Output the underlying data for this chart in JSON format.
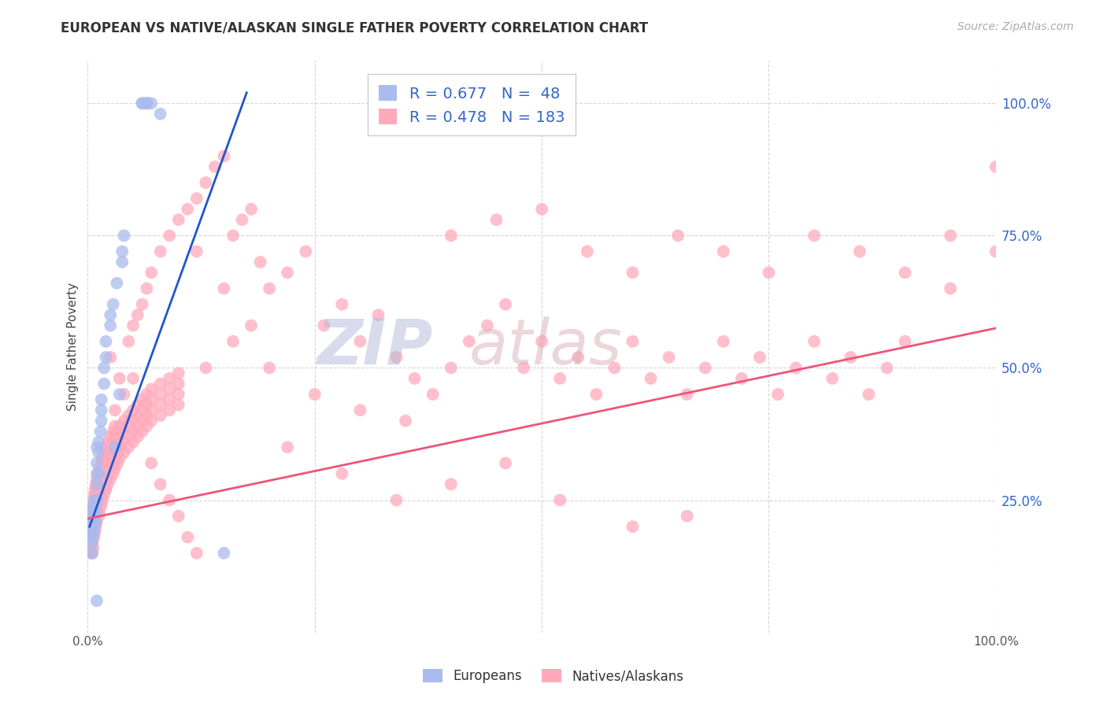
{
  "title": "EUROPEAN VS NATIVE/ALASKAN SINGLE FATHER POVERTY CORRELATION CHART",
  "source": "Source: ZipAtlas.com",
  "ylabel": "Single Father Poverty",
  "ytick_labels": [
    "25.0%",
    "50.0%",
    "75.0%",
    "100.0%"
  ],
  "ytick_positions": [
    0.25,
    0.5,
    0.75,
    1.0
  ],
  "europeans_color": "#aabbee",
  "natives_color": "#ffaabb",
  "trendline_blue": "#2255cc",
  "trendline_pink": "#ee5577",
  "xlim": [
    0.0,
    1.0
  ],
  "ylim": [
    0.0,
    1.08
  ],
  "background_color": "#ffffff",
  "grid_color": "#cccccc",
  "europeans_scatter": [
    [
      0.005,
      0.17
    ],
    [
      0.005,
      0.18
    ],
    [
      0.005,
      0.19
    ],
    [
      0.005,
      0.2
    ],
    [
      0.005,
      0.21
    ],
    [
      0.005,
      0.22
    ],
    [
      0.005,
      0.15
    ],
    [
      0.005,
      0.23
    ],
    [
      0.007,
      0.2
    ],
    [
      0.007,
      0.22
    ],
    [
      0.007,
      0.24
    ],
    [
      0.007,
      0.19
    ],
    [
      0.007,
      0.25
    ],
    [
      0.009,
      0.21
    ],
    [
      0.009,
      0.23
    ],
    [
      0.01,
      0.28
    ],
    [
      0.01,
      0.3
    ],
    [
      0.01,
      0.32
    ],
    [
      0.01,
      0.25
    ],
    [
      0.01,
      0.35
    ],
    [
      0.012,
      0.3
    ],
    [
      0.012,
      0.34
    ],
    [
      0.012,
      0.36
    ],
    [
      0.014,
      0.38
    ],
    [
      0.015,
      0.4
    ],
    [
      0.015,
      0.42
    ],
    [
      0.015,
      0.44
    ],
    [
      0.018,
      0.47
    ],
    [
      0.018,
      0.5
    ],
    [
      0.02,
      0.52
    ],
    [
      0.02,
      0.55
    ],
    [
      0.025,
      0.58
    ],
    [
      0.025,
      0.6
    ],
    [
      0.028,
      0.62
    ],
    [
      0.03,
      0.35
    ],
    [
      0.032,
      0.66
    ],
    [
      0.035,
      0.45
    ],
    [
      0.038,
      0.7
    ],
    [
      0.038,
      0.72
    ],
    [
      0.04,
      0.75
    ],
    [
      0.06,
      1.0
    ],
    [
      0.06,
      1.0
    ],
    [
      0.065,
      1.0
    ],
    [
      0.065,
      1.0
    ],
    [
      0.065,
      1.0
    ],
    [
      0.07,
      1.0
    ],
    [
      0.08,
      0.98
    ],
    [
      0.01,
      0.06
    ],
    [
      0.15,
      0.15
    ]
  ],
  "natives_scatter": [
    [
      0.003,
      0.17
    ],
    [
      0.003,
      0.19
    ],
    [
      0.003,
      0.21
    ],
    [
      0.003,
      0.15
    ],
    [
      0.003,
      0.23
    ],
    [
      0.004,
      0.18
    ],
    [
      0.004,
      0.2
    ],
    [
      0.004,
      0.22
    ],
    [
      0.004,
      0.16
    ],
    [
      0.004,
      0.24
    ],
    [
      0.005,
      0.17
    ],
    [
      0.005,
      0.19
    ],
    [
      0.005,
      0.21
    ],
    [
      0.005,
      0.23
    ],
    [
      0.005,
      0.15
    ],
    [
      0.006,
      0.18
    ],
    [
      0.006,
      0.22
    ],
    [
      0.006,
      0.2
    ],
    [
      0.006,
      0.24
    ],
    [
      0.006,
      0.16
    ],
    [
      0.007,
      0.2
    ],
    [
      0.007,
      0.22
    ],
    [
      0.007,
      0.24
    ],
    [
      0.007,
      0.18
    ],
    [
      0.007,
      0.26
    ],
    [
      0.008,
      0.21
    ],
    [
      0.008,
      0.23
    ],
    [
      0.008,
      0.25
    ],
    [
      0.008,
      0.19
    ],
    [
      0.008,
      0.27
    ],
    [
      0.009,
      0.22
    ],
    [
      0.009,
      0.24
    ],
    [
      0.009,
      0.26
    ],
    [
      0.009,
      0.2
    ],
    [
      0.009,
      0.28
    ],
    [
      0.01,
      0.23
    ],
    [
      0.01,
      0.25
    ],
    [
      0.01,
      0.27
    ],
    [
      0.01,
      0.21
    ],
    [
      0.01,
      0.29
    ],
    [
      0.012,
      0.24
    ],
    [
      0.012,
      0.26
    ],
    [
      0.012,
      0.28
    ],
    [
      0.012,
      0.22
    ],
    [
      0.012,
      0.3
    ],
    [
      0.013,
      0.25
    ],
    [
      0.013,
      0.27
    ],
    [
      0.013,
      0.29
    ],
    [
      0.013,
      0.23
    ],
    [
      0.013,
      0.31
    ],
    [
      0.015,
      0.26
    ],
    [
      0.015,
      0.28
    ],
    [
      0.015,
      0.3
    ],
    [
      0.015,
      0.24
    ],
    [
      0.015,
      0.32
    ],
    [
      0.016,
      0.27
    ],
    [
      0.016,
      0.29
    ],
    [
      0.016,
      0.31
    ],
    [
      0.016,
      0.25
    ],
    [
      0.016,
      0.33
    ],
    [
      0.018,
      0.28
    ],
    [
      0.018,
      0.3
    ],
    [
      0.018,
      0.32
    ],
    [
      0.018,
      0.26
    ],
    [
      0.018,
      0.34
    ],
    [
      0.02,
      0.29
    ],
    [
      0.02,
      0.31
    ],
    [
      0.02,
      0.33
    ],
    [
      0.02,
      0.27
    ],
    [
      0.02,
      0.35
    ],
    [
      0.022,
      0.3
    ],
    [
      0.022,
      0.32
    ],
    [
      0.022,
      0.34
    ],
    [
      0.022,
      0.28
    ],
    [
      0.022,
      0.36
    ],
    [
      0.025,
      0.31
    ],
    [
      0.025,
      0.33
    ],
    [
      0.025,
      0.35
    ],
    [
      0.025,
      0.29
    ],
    [
      0.025,
      0.37
    ],
    [
      0.028,
      0.32
    ],
    [
      0.028,
      0.34
    ],
    [
      0.028,
      0.36
    ],
    [
      0.028,
      0.3
    ],
    [
      0.028,
      0.38
    ],
    [
      0.03,
      0.33
    ],
    [
      0.03,
      0.35
    ],
    [
      0.03,
      0.37
    ],
    [
      0.03,
      0.31
    ],
    [
      0.03,
      0.39
    ],
    [
      0.033,
      0.34
    ],
    [
      0.033,
      0.36
    ],
    [
      0.033,
      0.38
    ],
    [
      0.033,
      0.32
    ],
    [
      0.035,
      0.35
    ],
    [
      0.035,
      0.37
    ],
    [
      0.035,
      0.39
    ],
    [
      0.035,
      0.33
    ],
    [
      0.04,
      0.36
    ],
    [
      0.04,
      0.38
    ],
    [
      0.04,
      0.4
    ],
    [
      0.04,
      0.34
    ],
    [
      0.045,
      0.37
    ],
    [
      0.045,
      0.39
    ],
    [
      0.045,
      0.41
    ],
    [
      0.045,
      0.35
    ],
    [
      0.05,
      0.38
    ],
    [
      0.05,
      0.4
    ],
    [
      0.05,
      0.42
    ],
    [
      0.05,
      0.36
    ],
    [
      0.055,
      0.39
    ],
    [
      0.055,
      0.41
    ],
    [
      0.055,
      0.43
    ],
    [
      0.055,
      0.37
    ],
    [
      0.06,
      0.4
    ],
    [
      0.06,
      0.42
    ],
    [
      0.06,
      0.44
    ],
    [
      0.06,
      0.38
    ],
    [
      0.065,
      0.41
    ],
    [
      0.065,
      0.43
    ],
    [
      0.065,
      0.45
    ],
    [
      0.065,
      0.39
    ],
    [
      0.07,
      0.42
    ],
    [
      0.07,
      0.44
    ],
    [
      0.07,
      0.46
    ],
    [
      0.07,
      0.4
    ],
    [
      0.08,
      0.43
    ],
    [
      0.08,
      0.45
    ],
    [
      0.08,
      0.47
    ],
    [
      0.08,
      0.41
    ],
    [
      0.09,
      0.44
    ],
    [
      0.09,
      0.46
    ],
    [
      0.09,
      0.48
    ],
    [
      0.09,
      0.42
    ],
    [
      0.1,
      0.45
    ],
    [
      0.1,
      0.47
    ],
    [
      0.1,
      0.49
    ],
    [
      0.1,
      0.43
    ],
    [
      0.025,
      0.52
    ],
    [
      0.035,
      0.48
    ],
    [
      0.045,
      0.55
    ],
    [
      0.05,
      0.58
    ],
    [
      0.06,
      0.62
    ],
    [
      0.065,
      0.65
    ],
    [
      0.07,
      0.68
    ],
    [
      0.055,
      0.6
    ],
    [
      0.08,
      0.72
    ],
    [
      0.09,
      0.75
    ],
    [
      0.1,
      0.78
    ],
    [
      0.11,
      0.8
    ],
    [
      0.12,
      0.82
    ],
    [
      0.13,
      0.85
    ],
    [
      0.14,
      0.88
    ],
    [
      0.15,
      0.9
    ],
    [
      0.16,
      0.75
    ],
    [
      0.17,
      0.78
    ],
    [
      0.18,
      0.8
    ],
    [
      0.19,
      0.7
    ],
    [
      0.2,
      0.65
    ],
    [
      0.22,
      0.68
    ],
    [
      0.24,
      0.72
    ],
    [
      0.26,
      0.58
    ],
    [
      0.28,
      0.62
    ],
    [
      0.3,
      0.55
    ],
    [
      0.32,
      0.6
    ],
    [
      0.34,
      0.52
    ],
    [
      0.36,
      0.48
    ],
    [
      0.38,
      0.45
    ],
    [
      0.4,
      0.5
    ],
    [
      0.42,
      0.55
    ],
    [
      0.44,
      0.58
    ],
    [
      0.46,
      0.62
    ],
    [
      0.48,
      0.5
    ],
    [
      0.5,
      0.55
    ],
    [
      0.52,
      0.48
    ],
    [
      0.54,
      0.52
    ],
    [
      0.56,
      0.45
    ],
    [
      0.58,
      0.5
    ],
    [
      0.6,
      0.55
    ],
    [
      0.62,
      0.48
    ],
    [
      0.64,
      0.52
    ],
    [
      0.66,
      0.45
    ],
    [
      0.68,
      0.5
    ],
    [
      0.7,
      0.55
    ],
    [
      0.72,
      0.48
    ],
    [
      0.74,
      0.52
    ],
    [
      0.76,
      0.45
    ],
    [
      0.78,
      0.5
    ],
    [
      0.8,
      0.55
    ],
    [
      0.82,
      0.48
    ],
    [
      0.84,
      0.52
    ],
    [
      0.86,
      0.45
    ],
    [
      0.88,
      0.5
    ],
    [
      0.9,
      0.55
    ],
    [
      0.22,
      0.35
    ],
    [
      0.28,
      0.3
    ],
    [
      0.34,
      0.25
    ],
    [
      0.4,
      0.28
    ],
    [
      0.46,
      0.32
    ],
    [
      0.52,
      0.25
    ],
    [
      0.6,
      0.2
    ],
    [
      0.66,
      0.22
    ],
    [
      0.03,
      0.42
    ],
    [
      0.04,
      0.45
    ],
    [
      0.05,
      0.48
    ],
    [
      0.12,
      0.72
    ],
    [
      0.15,
      0.65
    ],
    [
      0.18,
      0.58
    ],
    [
      0.4,
      0.75
    ],
    [
      0.45,
      0.78
    ],
    [
      0.5,
      0.8
    ],
    [
      0.55,
      0.72
    ],
    [
      0.6,
      0.68
    ],
    [
      0.65,
      0.75
    ],
    [
      0.7,
      0.72
    ],
    [
      0.75,
      0.68
    ],
    [
      0.8,
      0.75
    ],
    [
      0.85,
      0.72
    ],
    [
      0.9,
      0.68
    ],
    [
      0.95,
      0.75
    ],
    [
      1.0,
      0.88
    ],
    [
      1.0,
      0.72
    ],
    [
      0.95,
      0.65
    ],
    [
      0.13,
      0.5
    ],
    [
      0.16,
      0.55
    ],
    [
      0.2,
      0.5
    ],
    [
      0.25,
      0.45
    ],
    [
      0.3,
      0.42
    ],
    [
      0.35,
      0.4
    ],
    [
      0.07,
      0.32
    ],
    [
      0.08,
      0.28
    ],
    [
      0.09,
      0.25
    ],
    [
      0.1,
      0.22
    ],
    [
      0.11,
      0.18
    ],
    [
      0.12,
      0.15
    ]
  ],
  "blue_line_x": [
    0.002,
    0.175
  ],
  "blue_line_y": [
    0.2,
    1.02
  ],
  "pink_line_x": [
    0.0,
    1.0
  ],
  "pink_line_y": [
    0.215,
    0.575
  ]
}
